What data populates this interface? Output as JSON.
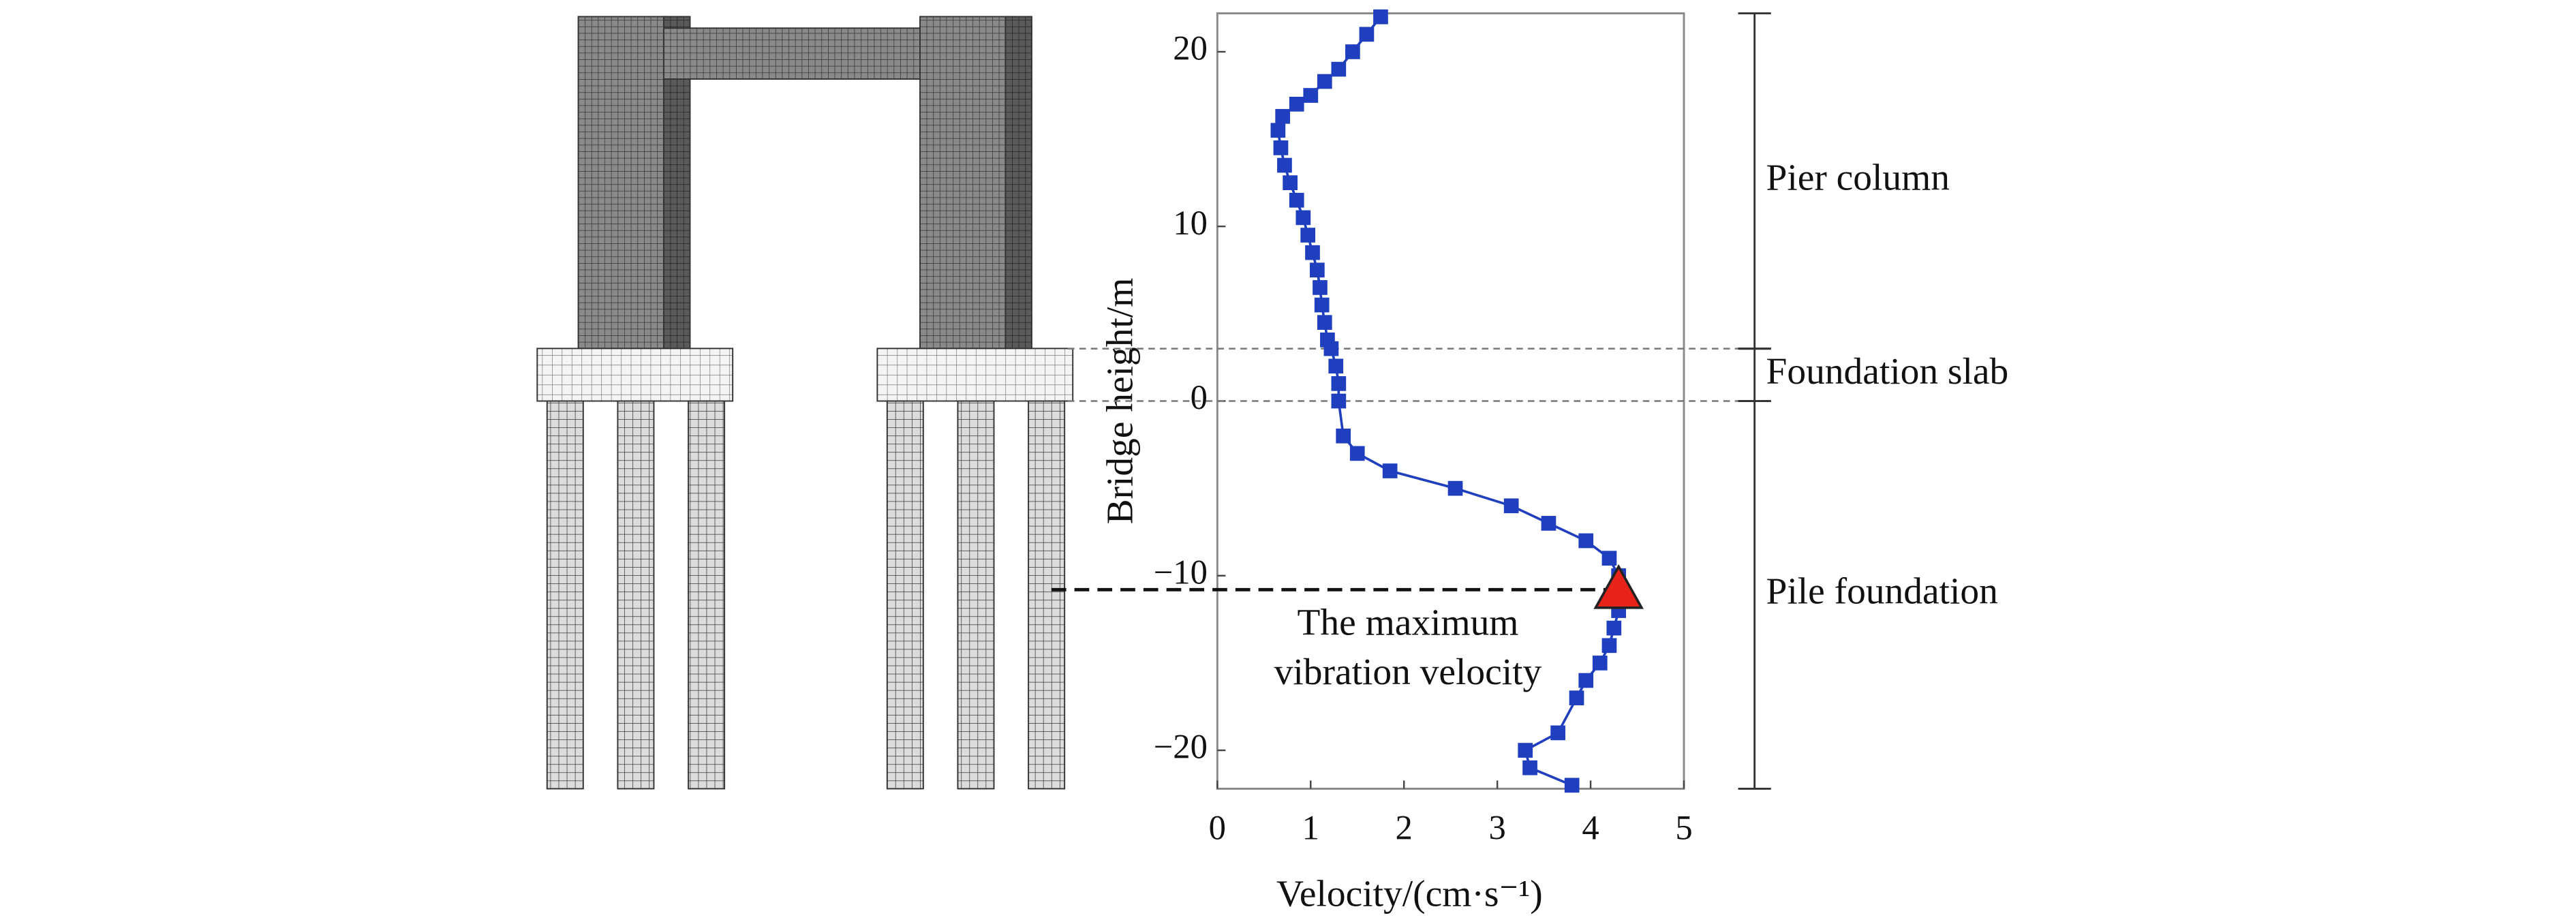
{
  "chart_data": {
    "type": "line",
    "xlabel": "Velocity/(cm·s⁻¹)",
    "ylabel": "Bridge height/m",
    "xlim": [
      0,
      5
    ],
    "ylim": [
      -22.2,
      22.2
    ],
    "xticks": [
      0,
      1,
      2,
      3,
      4,
      5
    ],
    "yticks": [
      {
        "value": -20,
        "label": "−20"
      },
      {
        "value": -10,
        "label": "−10"
      },
      {
        "value": 0,
        "label": "0"
      },
      10,
      20
    ],
    "series": [
      {
        "color": "#1f3fbf",
        "x": [
          1.75,
          1.6,
          1.45,
          1.3,
          1.15,
          1.0,
          0.85,
          0.7,
          0.65,
          0.68,
          0.72,
          0.78,
          0.85,
          0.92,
          0.97,
          1.02,
          1.07,
          1.1,
          1.12,
          1.15,
          1.18,
          1.22,
          1.27,
          1.3,
          1.3,
          1.35,
          1.5,
          1.85,
          2.55,
          3.15,
          3.55,
          3.95,
          4.2,
          4.3,
          4.3,
          4.3,
          4.25,
          4.2,
          4.1,
          3.95,
          3.85,
          3.65,
          3.3,
          3.35,
          3.8
        ],
        "values": [
          22,
          21,
          20,
          19,
          18.3,
          17.5,
          17,
          16.3,
          15.5,
          14.5,
          13.5,
          12.5,
          11.5,
          10.5,
          9.5,
          8.5,
          7.5,
          6.5,
          5.5,
          4.5,
          3.5,
          3,
          2,
          1,
          0,
          -2,
          -3,
          -4,
          -5,
          -6,
          -7,
          -8,
          -9,
          -10,
          -11,
          -12,
          -13,
          -14,
          -15,
          -16,
          -17,
          -19,
          -20,
          -21,
          -22
        ]
      }
    ],
    "max_point": {
      "x": 4.3,
      "y": -10.8,
      "color": "#e8231a",
      "label": [
        "The maximum",
        "vibration velocity"
      ]
    },
    "regions": [
      {
        "label": "Pier column",
        "from": 3,
        "to": 22.2
      },
      {
        "label": "Foundation slab",
        "from": 0,
        "to": 3
      },
      {
        "label": "Pile foundation",
        "from": -22.2,
        "to": 0
      }
    ]
  }
}
